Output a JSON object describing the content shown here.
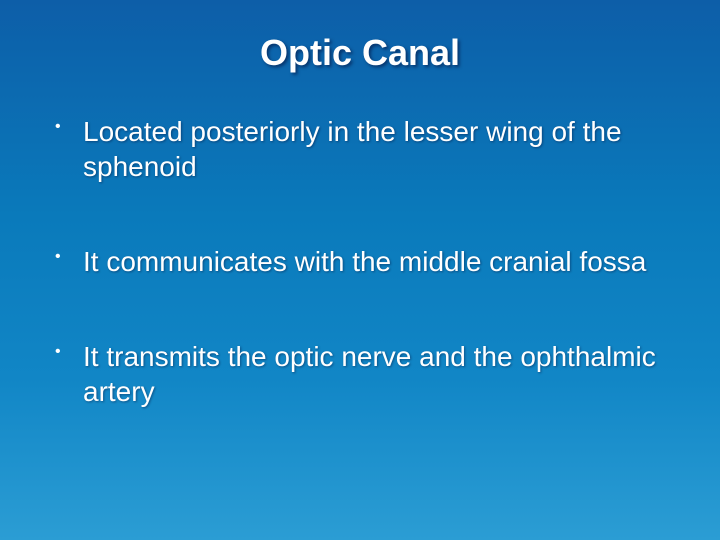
{
  "slide": {
    "title": "Optic Canal",
    "title_fontsize": 36,
    "title_color": "#ffffff",
    "bullets": [
      "Located posteriorly in the lesser wing of the sphenoid",
      "It communicates with the middle cranial fossa",
      "It transmits the optic nerve and the ophthalmic artery"
    ],
    "bullet_fontsize": 28,
    "bullet_spacing": 60,
    "text_color": "#ffffff",
    "background_gradient": {
      "top": "#0d5ea8",
      "mid1": "#0a7abb",
      "mid2": "#1186c6",
      "bottom": "#2b9dd4"
    }
  }
}
